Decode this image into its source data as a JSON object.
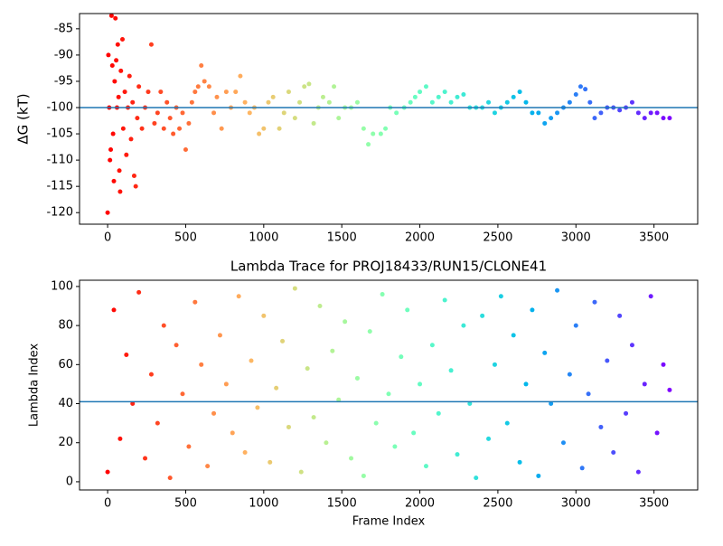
{
  "chart_data": [
    {
      "type": "scatter",
      "ylabel": "ΔG (kT)",
      "colormap": "rainbow_r",
      "hline": -100,
      "hline_color": "#1f77b4",
      "xlim": [
        -180,
        3780
      ],
      "xticks": [
        0,
        500,
        1000,
        1500,
        2000,
        2500,
        3000,
        3500
      ],
      "ylim": [
        -122.2,
        -82.1
      ],
      "yticks": [
        -120,
        -115,
        -110,
        -105,
        -100,
        -95,
        -90,
        -85
      ],
      "x": [
        0,
        5,
        10,
        15,
        20,
        25,
        30,
        35,
        40,
        45,
        50,
        55,
        60,
        65,
        70,
        75,
        80,
        85,
        95,
        100,
        110,
        120,
        130,
        140,
        150,
        160,
        170,
        180,
        190,
        200,
        220,
        240,
        260,
        280,
        300,
        320,
        340,
        360,
        380,
        400,
        420,
        440,
        460,
        480,
        500,
        520,
        540,
        560,
        580,
        600,
        620,
        650,
        680,
        700,
        730,
        760,
        790,
        820,
        850,
        880,
        910,
        940,
        970,
        1000,
        1030,
        1060,
        1100,
        1130,
        1160,
        1200,
        1230,
        1260,
        1290,
        1320,
        1350,
        1380,
        1420,
        1450,
        1480,
        1520,
        1560,
        1600,
        1640,
        1670,
        1700,
        1750,
        1780,
        1810,
        1850,
        1900,
        1940,
        1970,
        2000,
        2040,
        2080,
        2120,
        2160,
        2200,
        2240,
        2280,
        2320,
        2360,
        2400,
        2440,
        2480,
        2520,
        2560,
        2600,
        2640,
        2680,
        2720,
        2760,
        2800,
        2840,
        2880,
        2920,
        2960,
        3000,
        3030,
        3060,
        3090,
        3120,
        3160,
        3200,
        3240,
        3280,
        3320,
        3360,
        3400,
        3440,
        3480,
        3520,
        3560,
        3600
      ],
      "values": [
        -120,
        -90,
        -100,
        -110,
        -108,
        -82.5,
        -92,
        -105,
        -114,
        -95,
        -83,
        -91,
        -100,
        -88,
        -98,
        -112,
        -116,
        -93,
        -87,
        -104,
        -97,
        -109,
        -100,
        -94,
        -106,
        -99,
        -113,
        -115,
        -102,
        -96,
        -104,
        -100,
        -97,
        -88,
        -103,
        -101,
        -97,
        -104,
        -99,
        -102,
        -105,
        -100,
        -104,
        -101,
        -108,
        -103,
        -99,
        -97,
        -96,
        -92,
        -95,
        -96,
        -101,
        -98,
        -104,
        -97,
        -100,
        -97,
        -94,
        -99,
        -101,
        -100,
        -105,
        -104,
        -99,
        -98,
        -104,
        -101,
        -97,
        -102,
        -99,
        -96,
        -95.5,
        -103,
        -100,
        -98,
        -99,
        -96,
        -102,
        -100,
        -100,
        -99,
        -104,
        -107,
        -105,
        -105,
        -104,
        -100,
        -101,
        -100,
        -99,
        -98,
        -97,
        -96,
        -99,
        -98,
        -97,
        -99,
        -98,
        -97.5,
        -100,
        -100,
        -100,
        -99,
        -101,
        -100,
        -99,
        -98,
        -97,
        -99,
        -101,
        -101,
        -103,
        -102,
        -101,
        -100,
        -99,
        -97.5,
        -96,
        -96.5,
        -99,
        -102,
        -101,
        -100,
        -100,
        -100.5,
        -100,
        -99,
        -101,
        -102,
        -101,
        -101,
        -102,
        -102
      ]
    },
    {
      "type": "scatter",
      "title": "Lambda Trace for PROJ18433/RUN15/CLONE41",
      "xlabel": "Frame Index",
      "ylabel": "Lambda Index",
      "colormap": "rainbow_r",
      "hline": 41,
      "hline_color": "#1f77b4",
      "xlim": [
        -180,
        3780
      ],
      "xticks": [
        0,
        500,
        1000,
        1500,
        2000,
        2500,
        3000,
        3500
      ],
      "ylim": [
        -4.2,
        103.2
      ],
      "yticks": [
        0,
        20,
        40,
        60,
        80,
        100
      ],
      "x": [
        0,
        40,
        80,
        120,
        160,
        200,
        240,
        280,
        320,
        360,
        400,
        440,
        480,
        520,
        560,
        600,
        640,
        680,
        720,
        760,
        800,
        840,
        880,
        920,
        960,
        1000,
        1040,
        1080,
        1120,
        1160,
        1200,
        1240,
        1280,
        1320,
        1360,
        1400,
        1440,
        1480,
        1520,
        1560,
        1600,
        1640,
        1680,
        1720,
        1760,
        1800,
        1840,
        1880,
        1920,
        1960,
        2000,
        2040,
        2080,
        2120,
        2160,
        2200,
        2240,
        2280,
        2320,
        2360,
        2400,
        2440,
        2480,
        2520,
        2560,
        2600,
        2640,
        2680,
        2720,
        2760,
        2800,
        2840,
        2880,
        2920,
        2960,
        3000,
        3040,
        3080,
        3120,
        3160,
        3200,
        3240,
        3280,
        3320,
        3360,
        3400,
        3440,
        3480,
        3520,
        3560,
        3600
      ],
      "values": [
        5,
        88,
        22,
        65,
        40,
        97,
        12,
        55,
        30,
        80,
        2,
        70,
        45,
        18,
        92,
        60,
        8,
        35,
        75,
        50,
        25,
        95,
        15,
        62,
        38,
        85,
        10,
        48,
        72,
        28,
        99,
        5,
        58,
        33,
        90,
        20,
        67,
        42,
        82,
        12,
        53,
        3,
        77,
        30,
        96,
        45,
        18,
        64,
        88,
        25,
        50,
        8,
        70,
        35,
        93,
        57,
        14,
        80,
        40,
        2,
        85,
        22,
        60,
        95,
        30,
        75,
        10,
        50,
        88,
        3,
        66,
        40,
        98,
        20,
        55,
        80,
        7,
        45,
        92,
        28,
        62,
        15,
        85,
        35,
        70,
        5,
        50,
        95,
        25,
        60,
        47
      ]
    }
  ]
}
